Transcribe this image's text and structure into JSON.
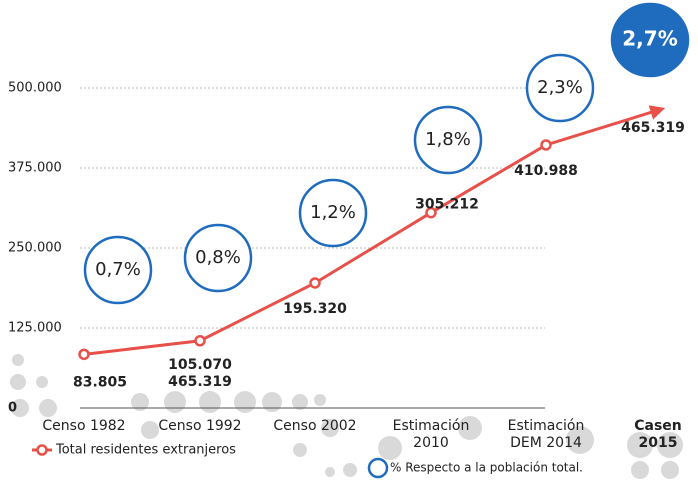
{
  "chart_data": {
    "type": "line",
    "categories": [
      "Censo 1982",
      "Censo 1992",
      "Censo 2002",
      "Estimación 2010",
      "Estimación DEM 2014",
      "Casen 2015"
    ],
    "series": [
      {
        "name": "Total residentes extranjeros",
        "color": "#e8504a",
        "values": [
          83805,
          105070,
          195320,
          305212,
          410988,
          465319
        ],
        "value_labels": [
          "83.805",
          "105.070",
          "195.320",
          "305.212",
          "410.988",
          "465.319"
        ]
      }
    ],
    "percent": {
      "name": "% Respecto a la población total.",
      "color": "#1f6cbf",
      "values": [
        0.7,
        0.8,
        1.2,
        1.8,
        2.3,
        2.7
      ],
      "value_labels": [
        "0,7%",
        "0,8%",
        "1,2%",
        "1,8%",
        "2,3%",
        "2,7%"
      ]
    },
    "annotations": [
      "465.319"
    ],
    "ylim": [
      0,
      500000
    ],
    "yticks": [
      0,
      {
        "value": 125000,
        "label": "125.000"
      },
      {
        "value": 250000,
        "label": "250.000"
      },
      {
        "value": 375000,
        "label": "375.000"
      },
      {
        "value": 500000,
        "label": "500.000"
      }
    ],
    "grid": true
  }
}
